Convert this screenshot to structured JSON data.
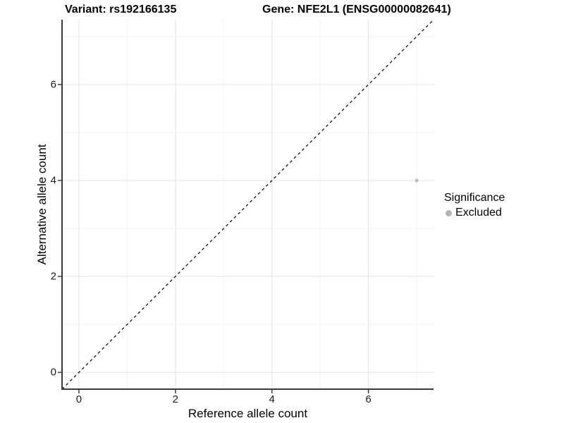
{
  "header": {
    "variant_title": "Variant: rs192166135",
    "gene_title": "Gene: NFE2L1 (ENSG00000082641)"
  },
  "axes": {
    "x_label": "Reference allele count",
    "y_label": "Alternative allele count",
    "x_tick_labels": [
      "0",
      "2",
      "4",
      "6"
    ],
    "y_tick_labels": [
      "0",
      "2",
      "4",
      "6"
    ]
  },
  "legend": {
    "title": "Significance",
    "items": [
      {
        "label": "Excluded",
        "color": "#b5b5b5"
      }
    ]
  },
  "colors": {
    "point": "#bebebe",
    "identity_line": "#111111",
    "axis_line": "#3b3b3b",
    "grid_major": "#e6e6e6",
    "grid_minor": "#f3f3f3",
    "background": "#ffffff"
  },
  "chart_data": {
    "type": "scatter",
    "title": "Variant: rs192166135 | Gene: NFE2L1 (ENSG00000082641)",
    "xlabel": "Reference allele count",
    "ylabel": "Alternative allele count",
    "xlim": [
      -0.35,
      7.35
    ],
    "ylim": [
      -0.35,
      7.35
    ],
    "x_ticks": [
      0,
      2,
      4,
      6
    ],
    "y_ticks": [
      0,
      2,
      4,
      6
    ],
    "x_minor_ticks": [
      1,
      3,
      5,
      7
    ],
    "y_minor_ticks": [
      1,
      3,
      5,
      7
    ],
    "grid": "major+minor",
    "legend_position": "right",
    "series": [
      {
        "name": "Excluded",
        "color": "#bebebe",
        "points": [
          {
            "x": 7,
            "y": 4
          }
        ]
      }
    ],
    "identity_line": {
      "style": "dashed",
      "color": "#111111",
      "from": -0.35,
      "to": 7.35
    }
  }
}
